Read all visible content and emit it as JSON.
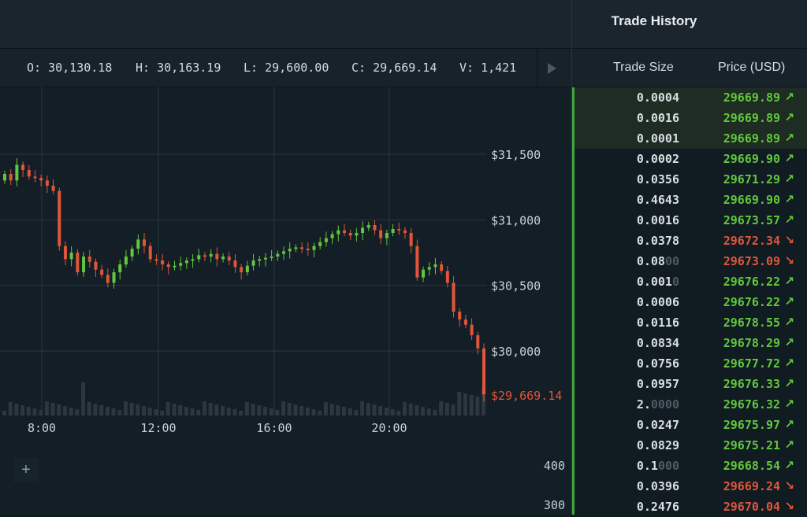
{
  "ohlcv": {
    "open": "O: 30,130.18",
    "high": "H: 30,163.19",
    "low": "L: 29,600.00",
    "close": "C: 29,669.14",
    "volume": "V: 1,421"
  },
  "chart_data": {
    "type": "candlestick",
    "x_ticks": [
      "8:00",
      "12:00",
      "16:00",
      "20:00"
    ],
    "y_ticks": [
      "$31,500",
      "$31,000",
      "$30,500",
      "$30,000"
    ],
    "y_values": [
      31500,
      31000,
      30500,
      30000
    ],
    "last_price_label": "$29,669.14",
    "last_price": 29669.14,
    "volume_ticks": [
      "400",
      "300"
    ],
    "colors": {
      "up": "#61c73c",
      "down": "#e0563a",
      "grid": "#2b363e",
      "volume": "#2c373f"
    }
  },
  "trade_history": {
    "title": "Trade History",
    "col_size": "Trade Size",
    "col_price": "Price (USD)",
    "rows": [
      {
        "size": "0.0004",
        "size_dim": "",
        "price": "29669.",
        "dec": "89",
        "dir": "up",
        "arrow": "↗"
      },
      {
        "size": "0.0016",
        "size_dim": "",
        "price": "29669.",
        "dec": "89",
        "dir": "up",
        "arrow": "↗"
      },
      {
        "size": "0.0001",
        "size_dim": "",
        "price": "29669.",
        "dec": "89",
        "dir": "up",
        "arrow": "↗"
      },
      {
        "size": "0.0002",
        "size_dim": "",
        "price": "29669.",
        "dec": "90",
        "dir": "up",
        "arrow": "↗"
      },
      {
        "size": "0.0356",
        "size_dim": "",
        "price": "29671.",
        "dec": "29",
        "dir": "up",
        "arrow": "↗"
      },
      {
        "size": "0.4643",
        "size_dim": "",
        "price": "29669.",
        "dec": "90",
        "dir": "up",
        "arrow": "↗"
      },
      {
        "size": "0.0016",
        "size_dim": "",
        "price": "29673.",
        "dec": "57",
        "dir": "up",
        "arrow": "↗"
      },
      {
        "size": "0.0378",
        "size_dim": "",
        "price": "29672.",
        "dec": "34",
        "dir": "down",
        "arrow": "↘"
      },
      {
        "size": "0.08",
        "size_dim": "00",
        "price": "29673.",
        "dec": "09",
        "dir": "down",
        "arrow": "↘"
      },
      {
        "size": "0.001",
        "size_dim": "0",
        "price": "29676.",
        "dec": "22",
        "dir": "up",
        "arrow": "↗"
      },
      {
        "size": "0.0006",
        "size_dim": "",
        "price": "29676.",
        "dec": "22",
        "dir": "up",
        "arrow": "↗"
      },
      {
        "size": "0.0116",
        "size_dim": "",
        "price": "29678.",
        "dec": "55",
        "dir": "up",
        "arrow": "↗"
      },
      {
        "size": "0.0834",
        "size_dim": "",
        "price": "29678.",
        "dec": "29",
        "dir": "up",
        "arrow": "↗"
      },
      {
        "size": "0.0756",
        "size_dim": "",
        "price": "29677.",
        "dec": "72",
        "dir": "up",
        "arrow": "↗"
      },
      {
        "size": "0.0957",
        "size_dim": "",
        "price": "29676.",
        "dec": "33",
        "dir": "up",
        "arrow": "↗"
      },
      {
        "size": "2.",
        "size_dim": "0000",
        "price": "29676.",
        "dec": "32",
        "dir": "up",
        "arrow": "↗"
      },
      {
        "size": "0.0247",
        "size_dim": "",
        "price": "29675.",
        "dec": "97",
        "dir": "up",
        "arrow": "↗"
      },
      {
        "size": "0.0829",
        "size_dim": "",
        "price": "29675.",
        "dec": "21",
        "dir": "up",
        "arrow": "↗"
      },
      {
        "size": "0.1",
        "size_dim": "000",
        "price": "29668.",
        "dec": "54",
        "dir": "up",
        "arrow": "↗"
      },
      {
        "size": "0.0396",
        "size_dim": "",
        "price": "29669.",
        "dec": "24",
        "dir": "down",
        "arrow": "↘"
      },
      {
        "size": "0.2476",
        "size_dim": "",
        "price": "29670.",
        "dec": "04",
        "dir": "down",
        "arrow": "↘"
      }
    ]
  },
  "icons": {
    "play": "play-icon",
    "plus": "plus-icon"
  }
}
